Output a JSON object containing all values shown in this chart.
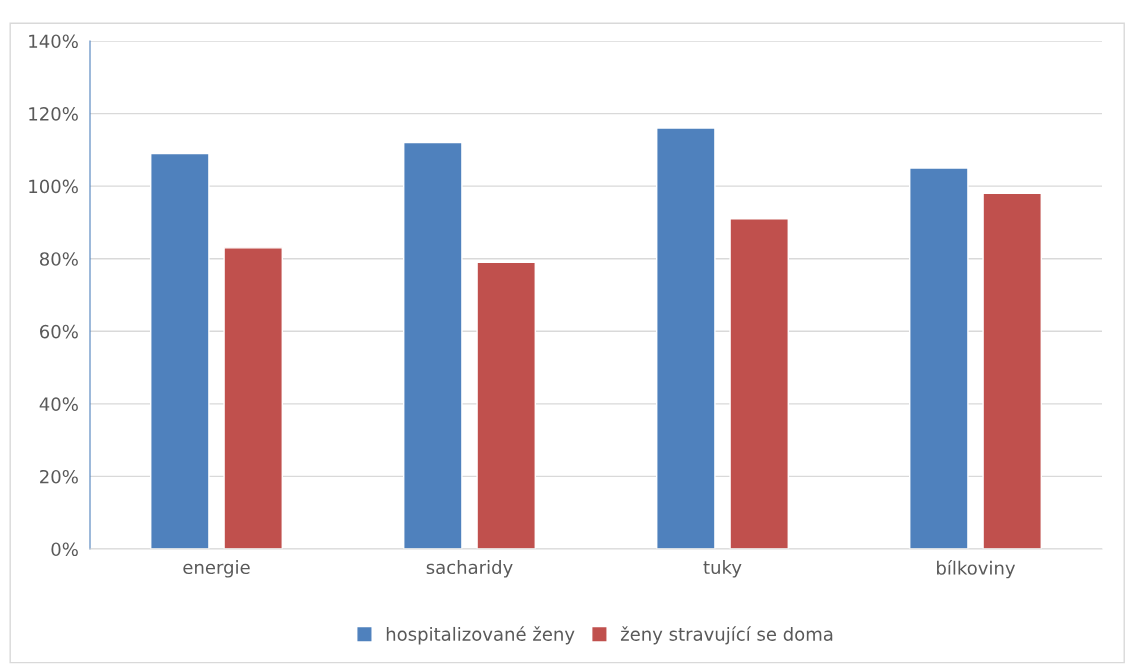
{
  "chart_data": {
    "type": "bar",
    "categories": [
      "energie",
      "sacharidy",
      "tuky",
      "bílkoviny"
    ],
    "series": [
      {
        "name": "hospitalizované ženy",
        "color": "#4f81bd",
        "values": [
          109,
          112,
          116,
          105
        ]
      },
      {
        "name": "ženy stravující se doma",
        "color": "#c0504d",
        "values": [
          83,
          79,
          91,
          98
        ]
      }
    ],
    "ylim": [
      0,
      140
    ],
    "yticks": [
      {
        "value": 0,
        "label": "0%"
      },
      {
        "value": 20,
        "label": "20%"
      },
      {
        "value": 40,
        "label": "40%"
      },
      {
        "value": 60,
        "label": "60%"
      },
      {
        "value": 80,
        "label": "80%"
      },
      {
        "value": 100,
        "label": "100%"
      },
      {
        "value": 120,
        "label": "120%"
      },
      {
        "value": 140,
        "label": "140%"
      }
    ],
    "grid": "y",
    "legend": "bottom"
  }
}
